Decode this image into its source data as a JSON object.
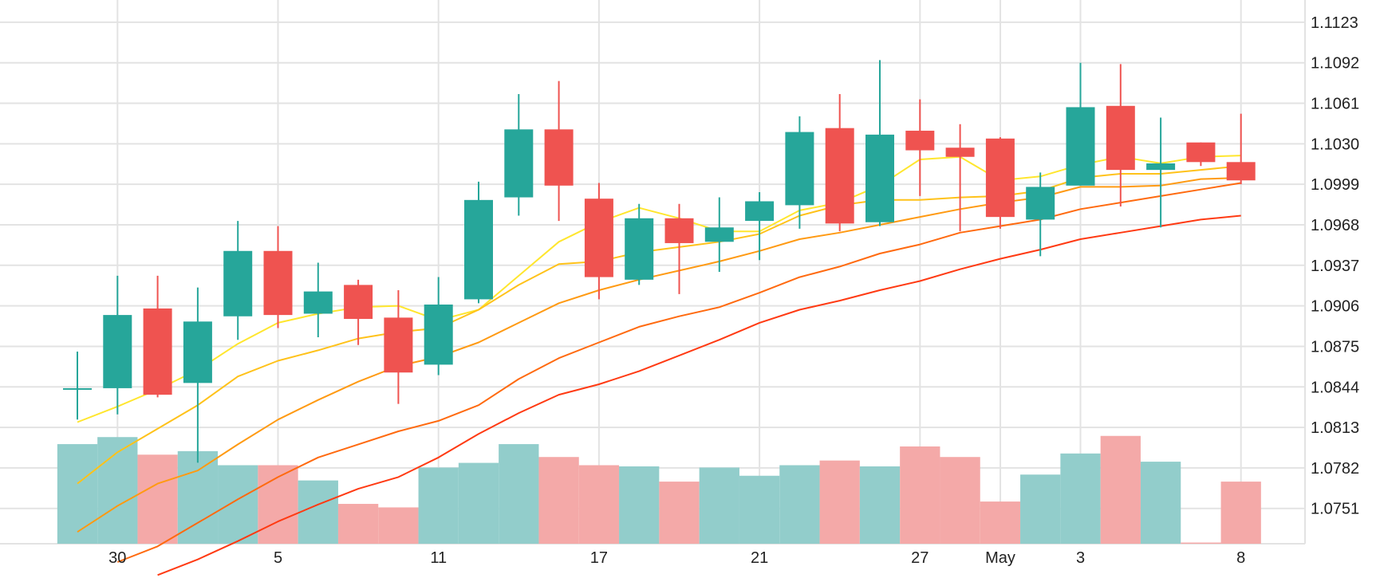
{
  "chart_data": {
    "type": "candlestick",
    "title": "",
    "xlabel": "",
    "ylabel": "",
    "ylim": [
      1.0724,
      1.114
    ],
    "y_ticks": [
      "1.1123",
      "1.1092",
      "1.1061",
      "1.1030",
      "1.0999",
      "1.0968",
      "1.0937",
      "1.0906",
      "1.0875",
      "1.0844",
      "1.0813",
      "1.0782",
      "1.0751"
    ],
    "x_ticks": [
      {
        "label": "30",
        "index": 1
      },
      {
        "label": "5",
        "index": 5
      },
      {
        "label": "11",
        "index": 9
      },
      {
        "label": "17",
        "index": 13
      },
      {
        "label": "21",
        "index": 17
      },
      {
        "label": "27",
        "index": 21
      },
      {
        "label": "May",
        "index": 23
      },
      {
        "label": "3",
        "index": 25
      },
      {
        "label": "8",
        "index": 29
      }
    ],
    "candles": [
      {
        "o": 1.0843,
        "h": 1.0871,
        "l": 1.0819,
        "c": 1.0843
      },
      {
        "o": 1.0843,
        "h": 1.0929,
        "l": 1.0823,
        "c": 1.0899
      },
      {
        "o": 1.0904,
        "h": 1.0929,
        "l": 1.0836,
        "c": 1.0838
      },
      {
        "o": 1.0847,
        "h": 1.092,
        "l": 1.0786,
        "c": 1.0894
      },
      {
        "o": 1.0898,
        "h": 1.0971,
        "l": 1.088,
        "c": 1.0948
      },
      {
        "o": 1.0948,
        "h": 1.0967,
        "l": 1.0889,
        "c": 1.0899
      },
      {
        "o": 1.09,
        "h": 1.0939,
        "l": 1.0882,
        "c": 1.0917
      },
      {
        "o": 1.0922,
        "h": 1.0926,
        "l": 1.0876,
        "c": 1.0896
      },
      {
        "o": 1.0897,
        "h": 1.0918,
        "l": 1.0831,
        "c": 1.0855
      },
      {
        "o": 1.0861,
        "h": 1.0928,
        "l": 1.0853,
        "c": 1.0907
      },
      {
        "o": 1.0911,
        "h": 1.1001,
        "l": 1.0908,
        "c": 1.0987
      },
      {
        "o": 1.0989,
        "h": 1.1068,
        "l": 1.0975,
        "c": 1.1041
      },
      {
        "o": 1.1041,
        "h": 1.1078,
        "l": 1.0971,
        "c": 1.0998
      },
      {
        "o": 1.0988,
        "h": 1.1,
        "l": 1.0911,
        "c": 1.0928
      },
      {
        "o": 1.0926,
        "h": 1.0984,
        "l": 1.0922,
        "c": 1.0973
      },
      {
        "o": 1.0973,
        "h": 1.0984,
        "l": 1.0915,
        "c": 1.0954
      },
      {
        "o": 1.0955,
        "h": 1.0989,
        "l": 1.0932,
        "c": 1.0966
      },
      {
        "o": 1.0971,
        "h": 1.0993,
        "l": 1.0941,
        "c": 1.0986
      },
      {
        "o": 1.0983,
        "h": 1.1051,
        "l": 1.0965,
        "c": 1.1039
      },
      {
        "o": 1.1042,
        "h": 1.1068,
        "l": 1.0963,
        "c": 1.0969
      },
      {
        "o": 1.097,
        "h": 1.1094,
        "l": 1.0967,
        "c": 1.1037
      },
      {
        "o": 1.104,
        "h": 1.1064,
        "l": 1.099,
        "c": 1.1025
      },
      {
        "o": 1.1027,
        "h": 1.1045,
        "l": 1.0963,
        "c": 1.102
      },
      {
        "o": 1.1034,
        "h": 1.1035,
        "l": 1.0965,
        "c": 1.0974
      },
      {
        "o": 1.0972,
        "h": 1.1008,
        "l": 1.0944,
        "c": 1.0997
      },
      {
        "o": 1.0998,
        "h": 1.1092,
        "l": 1.0998,
        "c": 1.1058
      },
      {
        "o": 1.1059,
        "h": 1.1091,
        "l": 1.0982,
        "c": 1.101
      },
      {
        "o": 1.101,
        "h": 1.105,
        "l": 1.0966,
        "c": 1.1015
      },
      {
        "o": 1.1031,
        "h": 1.1031,
        "l": 1.1013,
        "c": 1.1016
      },
      {
        "o": 1.1016,
        "h": 1.1053,
        "l": 1.0999,
        "c": 1.1002
      }
    ],
    "volume": [
      0.85,
      0.91,
      0.76,
      0.79,
      0.67,
      0.67,
      0.54,
      0.34,
      0.31,
      0.65,
      0.69,
      0.85,
      0.74,
      0.67,
      0.66,
      0.53,
      0.65,
      0.58,
      0.67,
      0.71,
      0.66,
      0.83,
      0.74,
      0.36,
      0.59,
      0.77,
      0.92,
      0.7,
      0.01,
      0.53
    ],
    "moving_averages": [
      {
        "color": "#FFE62E",
        "values": [
          1.0817,
          1.0829,
          1.0842,
          1.0857,
          1.0877,
          1.0893,
          1.09,
          1.0905,
          1.0906,
          1.0895,
          1.0903,
          1.0929,
          1.0955,
          1.097,
          1.0981,
          1.0973,
          1.0963,
          1.0963,
          1.0979,
          1.0985,
          1.0998,
          1.1018,
          1.102,
          1.1002,
          1.1005,
          1.1014,
          1.102,
          1.1015,
          1.102,
          1.1021
        ]
      },
      {
        "color": "#FFC21A",
        "values": [
          1.077,
          1.0794,
          1.0812,
          1.083,
          1.0852,
          1.0864,
          1.0872,
          1.0881,
          1.0886,
          1.0889,
          1.0903,
          1.0922,
          1.0938,
          1.094,
          1.0947,
          1.0951,
          1.0955,
          1.0961,
          1.0975,
          1.0983,
          1.0987,
          1.0987,
          1.0989,
          1.099,
          1.0994,
          1.1004,
          1.1007,
          1.1007,
          1.101,
          1.1013
        ]
      },
      {
        "color": "#FF9A12",
        "values": [
          1.0733,
          1.0753,
          1.077,
          1.078,
          1.08,
          1.0819,
          1.0834,
          1.0848,
          1.086,
          1.0867,
          1.0878,
          1.0893,
          1.0908,
          1.0918,
          1.0926,
          1.0933,
          1.094,
          1.0948,
          1.0957,
          1.0962,
          1.0968,
          1.0974,
          1.098,
          1.0985,
          1.0989,
          1.0997,
          1.0997,
          1.0998,
          1.1003,
          1.1004
        ]
      },
      {
        "color": "#FF6A0F",
        "values": [
          null,
          1.071,
          1.0722,
          1.074,
          1.0758,
          1.0775,
          1.079,
          1.08,
          1.081,
          1.0818,
          1.083,
          1.085,
          1.0866,
          1.0878,
          1.089,
          1.0898,
          1.0905,
          1.0916,
          1.0928,
          1.0936,
          1.0946,
          1.0953,
          1.0962,
          1.0967,
          1.0972,
          1.098,
          1.0985,
          1.099,
          1.0995,
          1.1
        ]
      },
      {
        "color": "#FF3A12",
        "values": [
          null,
          null,
          1.07,
          1.0712,
          1.0726,
          1.0741,
          1.0754,
          1.0766,
          1.0775,
          1.079,
          1.0808,
          1.0824,
          1.0838,
          1.0846,
          1.0856,
          1.0868,
          1.088,
          1.0893,
          1.0903,
          1.091,
          1.0918,
          1.0925,
          1.0934,
          1.0942,
          1.0949,
          1.0957,
          1.0962,
          1.0967,
          1.0972,
          1.0975
        ]
      }
    ],
    "colors": {
      "up": "#26A69A",
      "down": "#EF5350",
      "volume_up": "#92CDCB",
      "volume_down": "#F4A9A8",
      "grid": "#E3E3E3"
    }
  }
}
